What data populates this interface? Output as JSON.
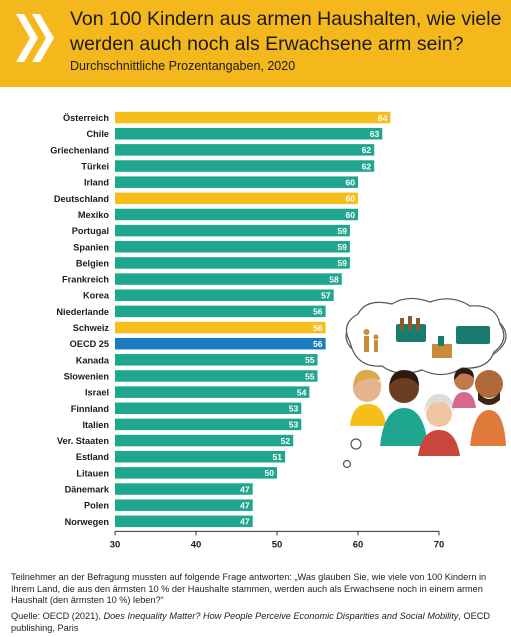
{
  "header": {
    "title": "Von 100 Kindern aus armen Haushalten, wie viele werden auch noch als Erwachsene arm sein?",
    "subtitle": "Durchschnittliche Prozentangaben, 2020"
  },
  "colors": {
    "header_bg": "#f4b71c",
    "bar_default": "#1fa68f",
    "bar_highlight": "#f5be1a",
    "bar_average": "#1b7bbf"
  },
  "chart_data": {
    "type": "bar",
    "orientation": "horizontal",
    "categories": [
      "Österreich",
      "Chile",
      "Griechenland",
      "Türkei",
      "Irland",
      "Deutschland",
      "Mexiko",
      "Portugal",
      "Spanien",
      "Belgien",
      "Frankreich",
      "Korea",
      "Niederlande",
      "Schweiz",
      "OECD 25",
      "Kanada",
      "Slowenien",
      "Israel",
      "Finnland",
      "Italien",
      "Ver. Staaten",
      "Estland",
      "Litauen",
      "Dänemark",
      "Polen",
      "Norwegen"
    ],
    "values": [
      64,
      63,
      62,
      62,
      60,
      60,
      60,
      59,
      59,
      59,
      58,
      57,
      56,
      56,
      56,
      55,
      55,
      54,
      53,
      53,
      52,
      51,
      50,
      47,
      47,
      47
    ],
    "highlight": [
      "Österreich",
      "Deutschland",
      "Schweiz"
    ],
    "average": "OECD 25",
    "xlim": [
      30,
      70
    ],
    "xticks": [
      30,
      40,
      50,
      60,
      70
    ],
    "grid": false,
    "data_labels": true
  },
  "illustration": {
    "icon": "thought-bubble-people-illustration"
  },
  "footer": {
    "note": "Teilnehmer an der Befragung mussten auf folgende Frage antworten: „Was glauben Sie, wie viele von 100 Kindern in Ihrem Land, die aus den ärmsten 10 % der Haushalte stammen, werden auch als Erwachsene noch in einem armen Haushalt (den ärmsten 10 %) leben?“",
    "source_prefix": "Quelle: OECD (2021), ",
    "source_title": "Does Inequality Matter? How People Perceive Economic Disparities and Social Mobility",
    "source_suffix": ", OECD publishing, Paris"
  }
}
